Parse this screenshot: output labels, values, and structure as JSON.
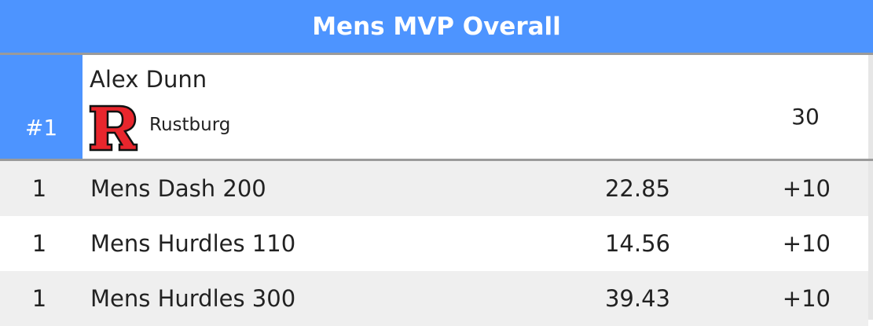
{
  "header": {
    "title": "Mens MVP Overall"
  },
  "athlete": {
    "rank": "#1",
    "name": "Alex Dunn",
    "team": "Rustburg",
    "points": "30"
  },
  "table": {
    "rows": [
      [
        "1",
        "Mens Dash 200",
        "22.85",
        "+10"
      ],
      [
        "1",
        "Mens Hurdles 110",
        "14.56",
        "+10"
      ],
      [
        "1",
        "Mens Hurdles 300",
        "39.43",
        "+10"
      ]
    ]
  }
}
